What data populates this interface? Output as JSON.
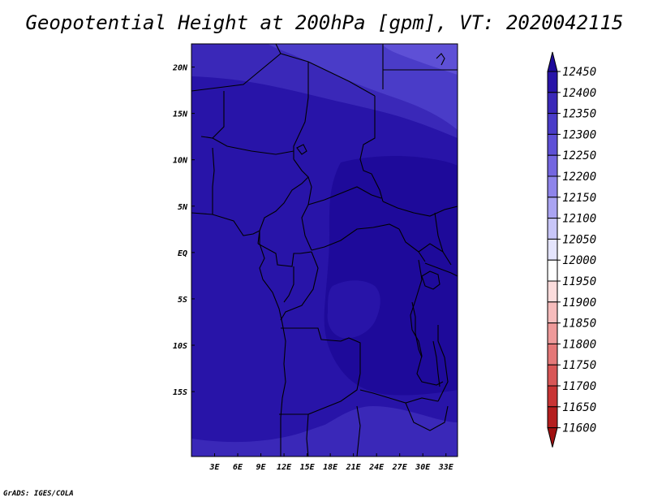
{
  "title": "Geopotential Height at 200hPa [gpm], VT: 2020042115",
  "credit": "GrADS: IGES/COLA",
  "map": {
    "lon_range": [
      0,
      34.5
    ],
    "lat_range": [
      -22,
      22.5
    ],
    "x_tick_labels": [
      "3E",
      "6E",
      "9E",
      "12E",
      "15E",
      "18E",
      "21E",
      "24E",
      "27E",
      "30E",
      "33E"
    ],
    "y_tick_labels": [
      "20N",
      "15N",
      "10N",
      "5N",
      "EQ",
      "5S",
      "10S",
      "15S"
    ]
  },
  "colorbar": {
    "labels": [
      "12450",
      "12400",
      "12350",
      "12300",
      "12250",
      "12200",
      "12150",
      "12100",
      "12050",
      "12000",
      "11950",
      "11900",
      "11850",
      "11800",
      "11750",
      "11700",
      "11650",
      "11600"
    ],
    "colors": [
      "#1e0a9a",
      "#2814a8",
      "#3a28b8",
      "#4a3cc8",
      "#5e50d6",
      "#7466e0",
      "#8e84ea",
      "#aaa4f2",
      "#c8c6f8",
      "#e4e4fc",
      "#ffffff",
      "#fbdcdc",
      "#f6bcbc",
      "#ee9a9a",
      "#e47878",
      "#d85656",
      "#c83434",
      "#b41e1e",
      "#a01010"
    ]
  },
  "field_colors": {
    "12350": "#3a28b8",
    "12400": "#2814a8",
    "12450": "#1e0a9a",
    "12300": "#4a3cc8"
  }
}
